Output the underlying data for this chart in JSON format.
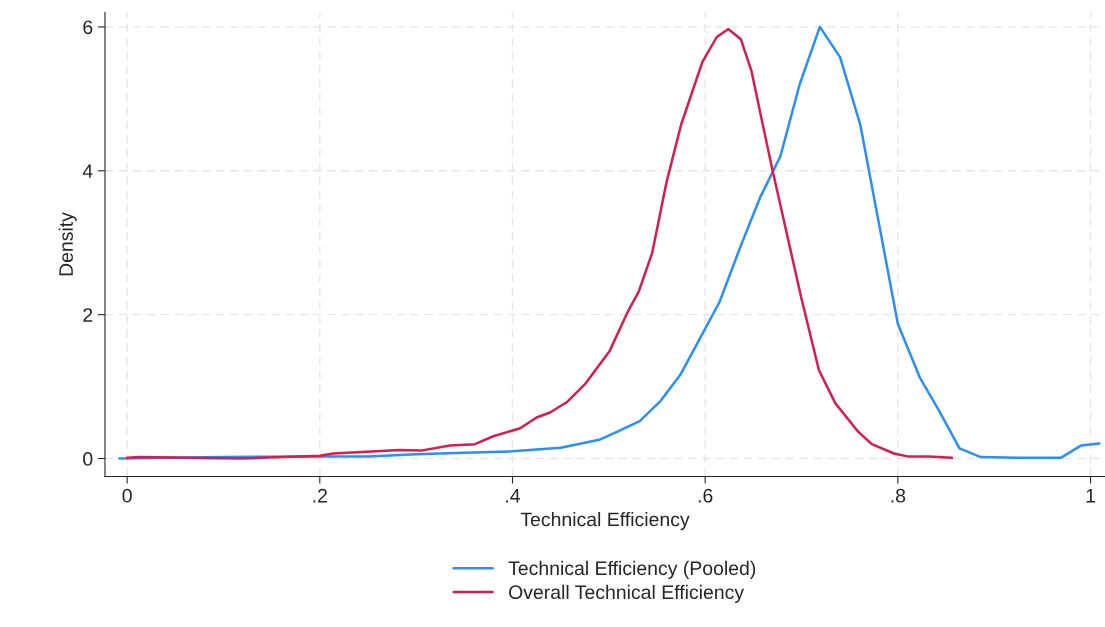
{
  "chart_data": {
    "type": "line",
    "xlabel": "Technical Efficiency",
    "ylabel": "Density",
    "xlim": [
      -0.023,
      1.015
    ],
    "ylim": [
      -0.25,
      6.2
    ],
    "xticks": [
      0,
      {
        "value": 0.2,
        "label": ".2"
      },
      {
        "value": 0.4,
        "label": ".4"
      },
      {
        "value": 0.6,
        "label": ".6"
      },
      {
        "value": 0.8,
        "label": ".8"
      },
      1
    ],
    "yticks": [
      0,
      2,
      4,
      6
    ],
    "grid": true,
    "legend": "bottom",
    "line_style": "solid",
    "series": [
      {
        "name": "Technical Efficiency (Pooled)",
        "color": "#2a8ff7",
        "x": [
          -0.008,
          0.1,
          0.2,
          0.25,
          0.3,
          0.35,
          0.4,
          0.45,
          0.49,
          0.51,
          0.532,
          0.553,
          0.574,
          0.595,
          0.615,
          0.637,
          0.657,
          0.678,
          0.698,
          0.719,
          0.74,
          0.761,
          0.8,
          0.823,
          0.843,
          0.864,
          0.886,
          0.93,
          0.969,
          0.99,
          1.009
        ],
        "values": [
          0.0,
          0.02,
          0.03,
          0.03,
          0.06,
          0.08,
          0.1,
          0.15,
          0.26,
          0.38,
          0.52,
          0.79,
          1.16,
          1.68,
          2.18,
          2.96,
          3.63,
          4.2,
          5.2,
          6.0,
          5.58,
          4.64,
          1.87,
          1.12,
          0.66,
          0.14,
          0.02,
          0.01,
          0.01,
          0.18,
          0.21
        ]
      },
      {
        "name": "Overall Technical Efficiency",
        "color": "#d81b50",
        "x": [
          0.0,
          0.013,
          0.117,
          0.2,
          0.214,
          0.283,
          0.305,
          0.335,
          0.361,
          0.38,
          0.408,
          0.425,
          0.439,
          0.457,
          0.475,
          0.501,
          0.52,
          0.531,
          0.545,
          0.56,
          0.575,
          0.597,
          0.612,
          0.624,
          0.637,
          0.648,
          0.659,
          0.67,
          0.685,
          0.7,
          0.718,
          0.735,
          0.759,
          0.773,
          0.796,
          0.81,
          0.832,
          0.856
        ],
        "values": [
          0.01,
          0.02,
          0.0,
          0.04,
          0.07,
          0.12,
          0.11,
          0.18,
          0.2,
          0.31,
          0.42,
          0.57,
          0.64,
          0.79,
          1.03,
          1.5,
          2.05,
          2.32,
          2.86,
          3.85,
          4.64,
          5.51,
          5.86,
          5.97,
          5.83,
          5.39,
          4.69,
          4.0,
          3.11,
          2.22,
          1.23,
          0.77,
          0.37,
          0.2,
          0.07,
          0.03,
          0.03,
          0.01
        ]
      }
    ]
  }
}
